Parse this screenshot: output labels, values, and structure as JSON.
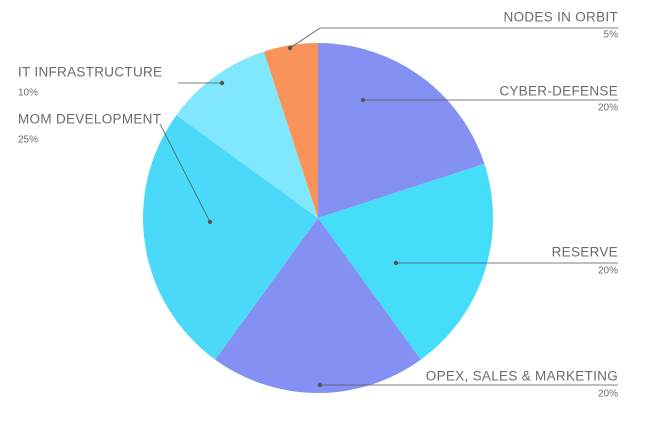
{
  "chart_data": {
    "type": "pie",
    "categories": [
      "CYBER-DEFENSE",
      "RESERVE",
      "OPEX, SALES & MARKETING",
      "MOM DEVELOPMENT",
      "IT  INFRASTRUCTURE",
      "NODES IN  ORBIT"
    ],
    "values": [
      20,
      20,
      20,
      25,
      10,
      5
    ],
    "value_labels": [
      "20%",
      "20%",
      "20%",
      "25%",
      "10%",
      "5%"
    ],
    "colors": [
      "#8591f2",
      "#45defa",
      "#8591f2",
      "#4bd9f9",
      "#80e7fd",
      "#f8935a"
    ]
  }
}
